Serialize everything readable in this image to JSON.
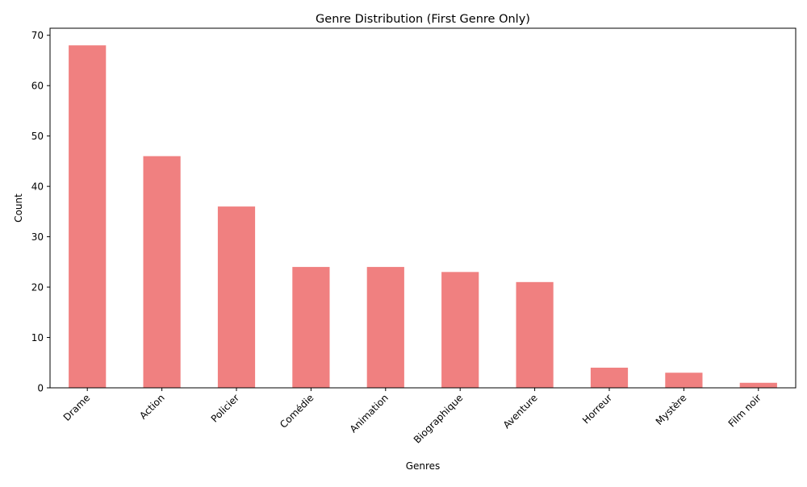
{
  "chart_data": {
    "type": "bar",
    "title": "Genre Distribution (First Genre Only)",
    "xlabel": "Genres",
    "ylabel": "Count",
    "categories": [
      "Drame",
      "Action",
      "Policier",
      "Comédie",
      "Animation",
      "Biographique",
      "Aventure",
      "Horreur",
      "Mystère",
      "Film noir"
    ],
    "values": [
      68,
      46,
      36,
      24,
      24,
      23,
      21,
      4,
      3,
      1
    ],
    "ylim": [
      0,
      71.4
    ],
    "yticks": [
      0,
      10,
      20,
      30,
      40,
      50,
      60,
      70
    ],
    "xtick_rotation": "45",
    "bar_color": "#f08080",
    "grid": false,
    "legend": "none"
  }
}
